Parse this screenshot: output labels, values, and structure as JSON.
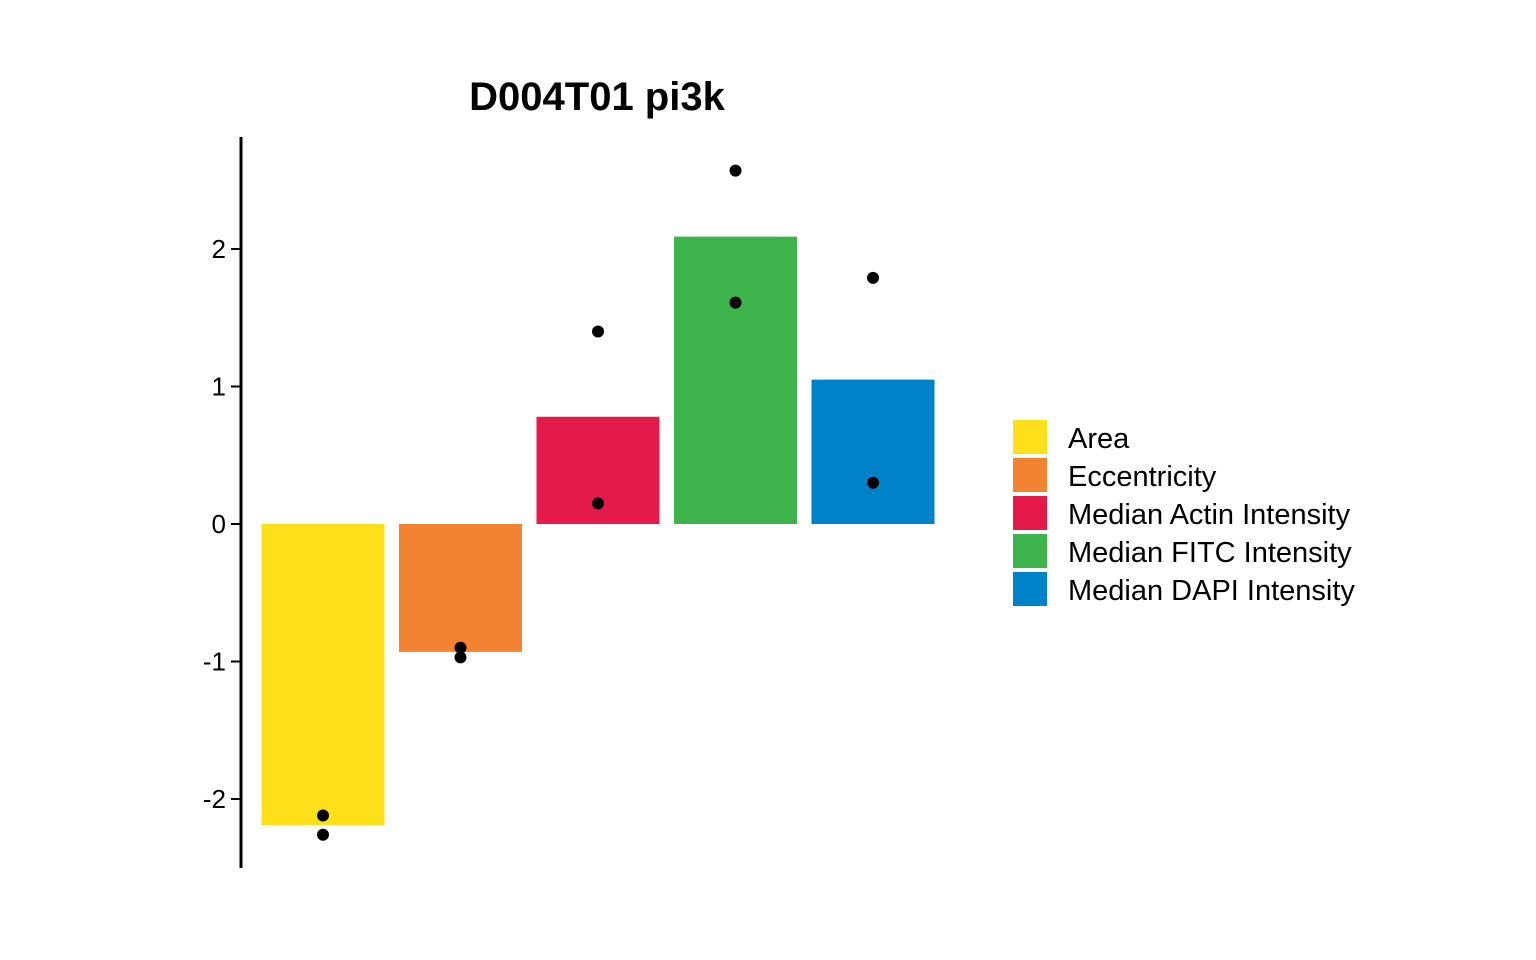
{
  "chart_data": {
    "type": "bar",
    "title": "D004T01 pi3k",
    "xlabel": "",
    "ylabel": "",
    "ylim": [
      -2.5,
      2.82
    ],
    "yticks": [
      -2,
      -1,
      0,
      1,
      2
    ],
    "ytick_labels": [
      "-2",
      "-1",
      "0",
      "1",
      "2"
    ],
    "grid": false,
    "legend_position": "right",
    "categories": [
      "Area",
      "Eccentricity",
      "Median Actin Intensity",
      "Median FITC Intensity",
      "Median DAPI Intensity"
    ],
    "values": [
      -2.19,
      -0.93,
      0.78,
      2.09,
      1.05
    ],
    "points": [
      [
        -2.12,
        -2.26
      ],
      [
        -0.9,
        -0.97
      ],
      [
        1.4,
        0.15
      ],
      [
        2.57,
        1.61
      ],
      [
        1.79,
        0.3
      ]
    ],
    "colors": [
      "#FDE01A",
      "#F48331",
      "#E6194B",
      "#3CB44B",
      "#0082C8"
    ],
    "legend": [
      {
        "label": "Area",
        "color": "#FDE01A"
      },
      {
        "label": "Eccentricity",
        "color": "#F48331"
      },
      {
        "label": "Median Actin Intensity",
        "color": "#E6194B"
      },
      {
        "label": "Median FITC Intensity",
        "color": "#3CB44B"
      },
      {
        "label": "Median DAPI Intensity",
        "color": "#0082C8"
      }
    ]
  }
}
